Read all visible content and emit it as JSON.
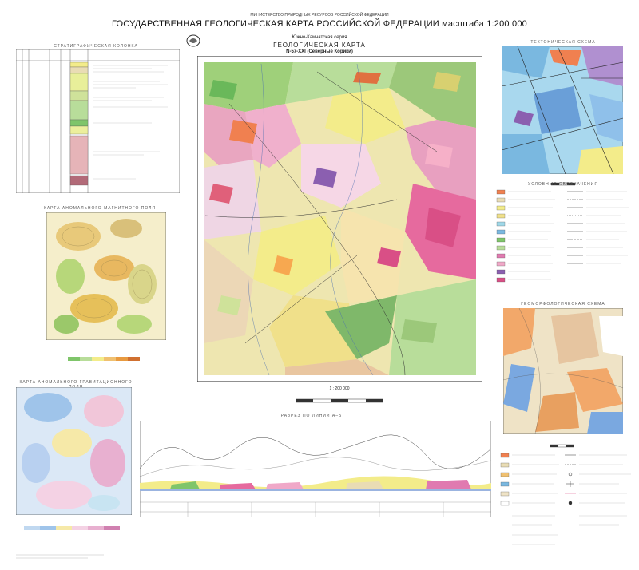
{
  "header": {
    "ministry": "МИНИСТЕРСТВО ПРИРОДНЫХ РЕСУРСОВ РОССИЙСКОЙ ФЕДЕРАЦИИ",
    "title": "ГОСУДАРСТВЕННАЯ ГЕОЛОГИЧЕСКАЯ КАРТА РОССИЙСКОЙ ФЕДЕРАЦИИ масштаба 1:200 000",
    "series": "Южно-Камчатская серия",
    "map_type": "ГЕОЛОГИЧЕСКАЯ КАРТА",
    "sheet": "N-57-XXI (Северные Корики)"
  },
  "sections": {
    "strat_title": "СТРАТИГРАФИЧЕСКАЯ КОЛОНКА",
    "tectonic_title": "ТЕКТОНИЧЕСКАЯ СХЕМА",
    "geomorph_title": "ГЕОМОРФОЛОГИЧЕСКАЯ СХЕМА",
    "anomalous_title": "КАРТА АНОМАЛЬНОГО МАГНИТНОГО ПОЛЯ",
    "gravity_title": "КАРТА АНОМАЛЬНОГО ГРАВИТАЦИОННОГО ПОЛЯ",
    "section_title": "РАЗРЕЗ ПО ЛИНИИ А–Б",
    "legend_title": "УСЛОВНЫЕ ОБОЗНАЧЕНИЯ"
  },
  "main_scale": "1 : 200 000",
  "colors": {
    "yellow": "#f3ec8a",
    "pink": "#f0a8c8",
    "magenta": "#e07ab0",
    "green": "#7fc56a",
    "lightgreen": "#b8dd9a",
    "orange": "#f08050",
    "purple": "#8b5fb0",
    "blue": "#7ab8e0",
    "tan": "#e9dcb4",
    "cyan": "#9fd8e8"
  }
}
